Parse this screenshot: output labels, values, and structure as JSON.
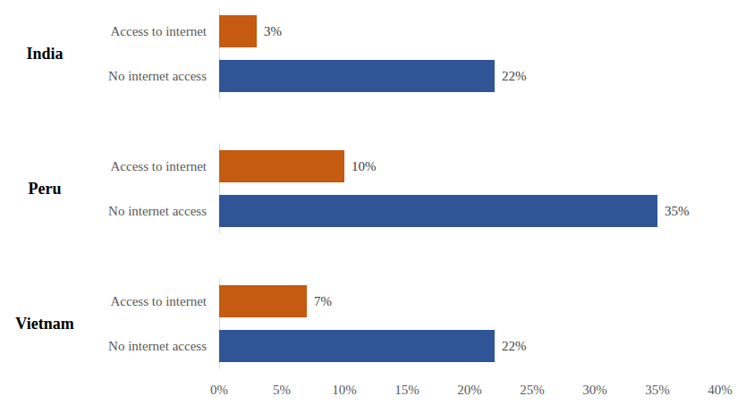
{
  "chart_data": {
    "type": "bar",
    "orientation": "horizontal",
    "categories": [
      "India",
      "Peru",
      "Vietnam"
    ],
    "series": [
      {
        "name": "Access to internet",
        "color": "#c55a11",
        "values": [
          3,
          10,
          7
        ],
        "value_labels": [
          "3%",
          "10%",
          "7%"
        ]
      },
      {
        "name": "No internet access",
        "color": "#2f5597",
        "values": [
          22,
          35,
          22
        ],
        "value_labels": [
          "22%",
          "35%",
          "22%"
        ]
      }
    ],
    "xlim": [
      0,
      40
    ],
    "xticks": [
      {
        "value": 0,
        "label": "0%"
      },
      {
        "value": 5,
        "label": "5%"
      },
      {
        "value": 10,
        "label": "10%"
      },
      {
        "value": 15,
        "label": "15%"
      },
      {
        "value": 20,
        "label": "20%"
      },
      {
        "value": 25,
        "label": "25%"
      },
      {
        "value": 30,
        "label": "30%"
      },
      {
        "value": 35,
        "label": "35%"
      },
      {
        "value": 40,
        "label": "40%"
      }
    ],
    "data_labels": true,
    "grid": false
  }
}
